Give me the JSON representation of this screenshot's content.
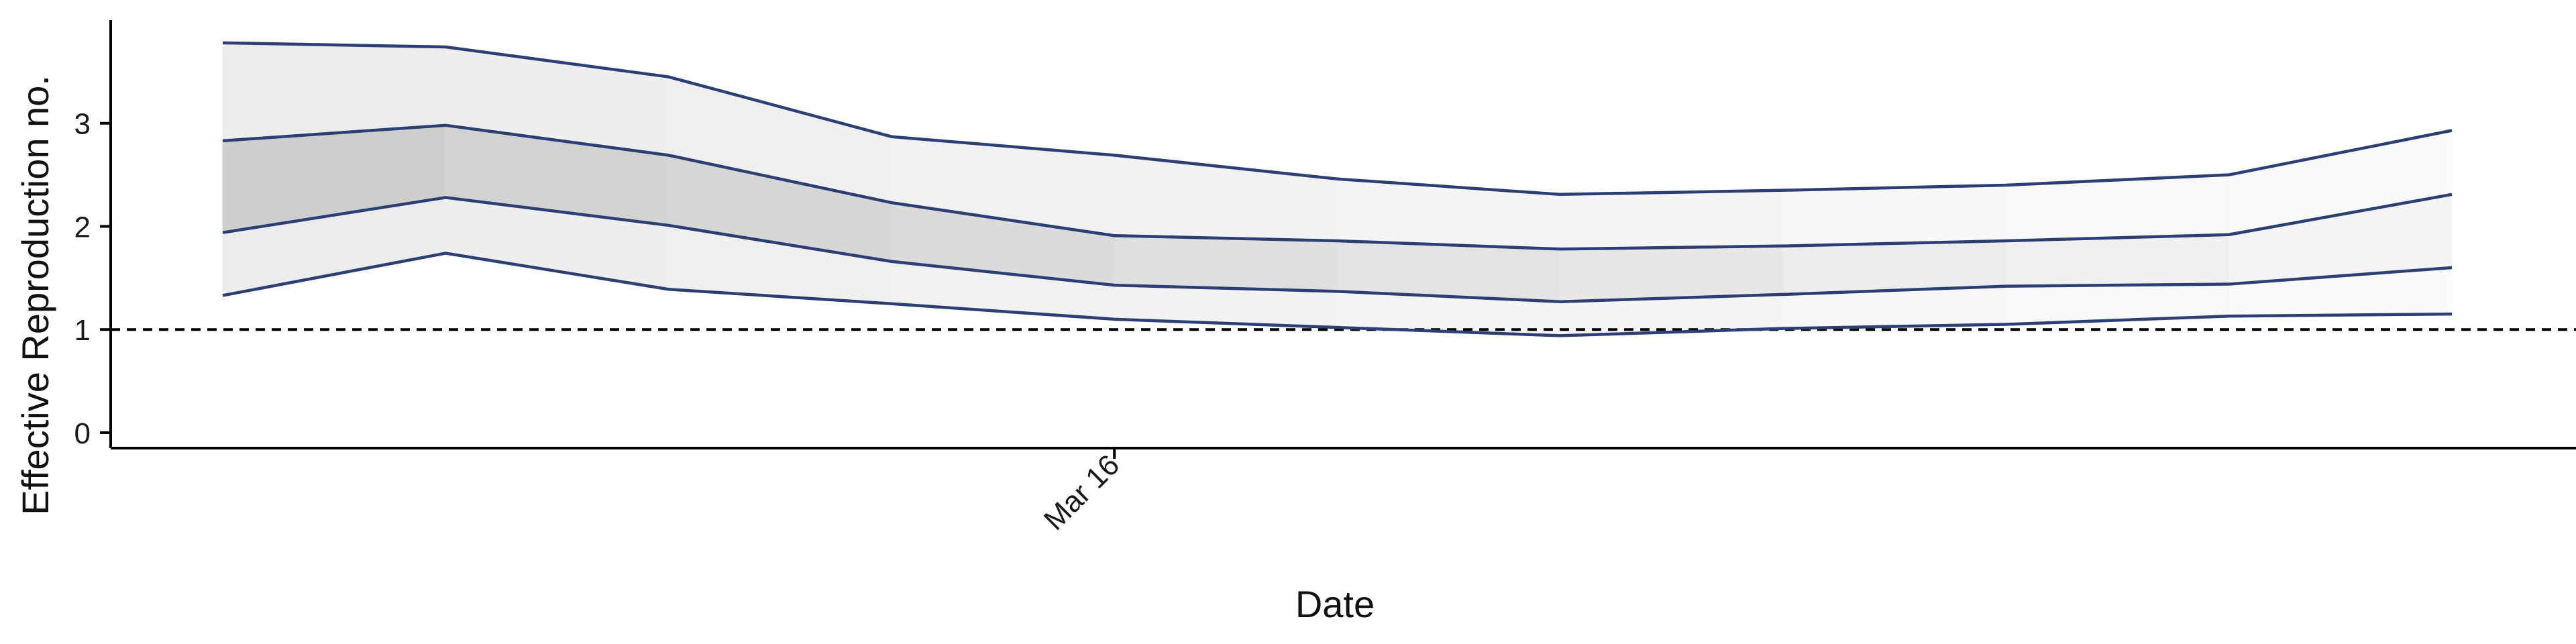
{
  "chart_data": {
    "type": "line",
    "title": "",
    "xlabel": "Date",
    "ylabel": "Effective Reproduction no.",
    "x": [
      0,
      1,
      2,
      3,
      4,
      5,
      6,
      7,
      8,
      9,
      10
    ],
    "x_tick_labels": [
      {
        "x": 4,
        "label": "Mar 16"
      }
    ],
    "ylim": [
      -0.15,
      4.0
    ],
    "y_ticks": [
      0,
      1,
      2,
      3
    ],
    "reference_line": {
      "y": 1,
      "style": "dashed"
    },
    "series": [
      {
        "role": "lower_90",
        "values": [
          1.33,
          1.74,
          1.39,
          1.25,
          1.1,
          1.02,
          0.94,
          1.01,
          1.05,
          1.13,
          1.15
        ]
      },
      {
        "role": "lower_50",
        "values": [
          1.94,
          2.28,
          2.01,
          1.66,
          1.43,
          1.37,
          1.27,
          1.34,
          1.42,
          1.44,
          1.6
        ]
      },
      {
        "role": "upper_50",
        "values": [
          2.83,
          2.98,
          2.69,
          2.23,
          1.91,
          1.86,
          1.78,
          1.81,
          1.86,
          1.92,
          2.31
        ]
      },
      {
        "role": "upper_90",
        "values": [
          3.78,
          3.74,
          3.45,
          2.87,
          2.69,
          2.46,
          2.31,
          2.35,
          2.4,
          2.5,
          2.93
        ]
      }
    ],
    "colors": {
      "line": "#2c3f72",
      "band_inner": "#cfcfcf",
      "band_outer": "#ededed",
      "axis": "#000000"
    },
    "grid": false,
    "legend": "none"
  }
}
